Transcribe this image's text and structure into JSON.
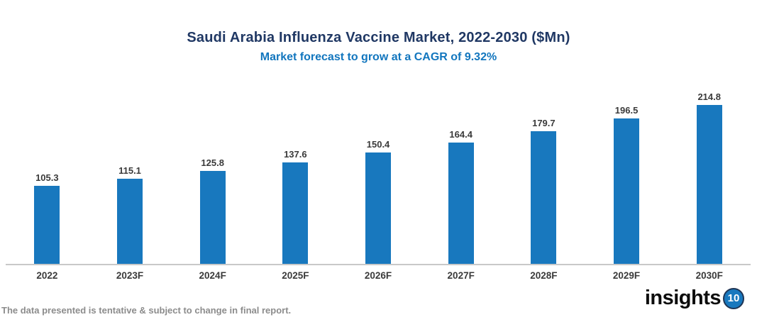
{
  "header": {
    "title": "Saudi Arabia Influenza Vaccine Market, 2022-2030 ($Mn)",
    "subtitle": "Market forecast to grow at a CAGR of 9.32%"
  },
  "footer": {
    "disclaimer": "The data presented is tentative & subject to change in final report."
  },
  "logo": {
    "text": "insights",
    "badge": "10"
  },
  "colors": {
    "bar": "#1878BE",
    "title": "#203864",
    "subtitle": "#1276BE",
    "value_label": "#3A3A3A",
    "axis_line": "#C9C9C9",
    "footer_text": "#8C8C8C",
    "logo_text": "#0d0d0d",
    "logo_badge_fill": "#1878BE",
    "logo_badge_ring": "#1F3555",
    "logo_badge_text": "#ffffff"
  },
  "chart_data": {
    "type": "bar",
    "title": "Saudi Arabia Influenza Vaccine Market, 2022-2030 ($Mn)",
    "subtitle": "Market forecast to grow at a CAGR of 9.32%",
    "categories": [
      "2022",
      "2023F",
      "2024F",
      "2025F",
      "2026F",
      "2027F",
      "2028F",
      "2029F",
      "2030F"
    ],
    "values": [
      105.3,
      115.1,
      125.8,
      137.6,
      150.4,
      164.4,
      179.7,
      196.5,
      214.8
    ],
    "value_decimals": 1,
    "xlabel": "",
    "ylabel": "",
    "ylim": [
      0,
      250
    ],
    "grid": false,
    "legend_position": "none",
    "value_labels_shown": true,
    "bar_color": "#1878BE"
  }
}
